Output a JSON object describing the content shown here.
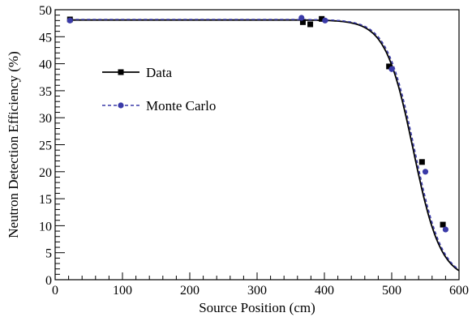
{
  "chart_data": {
    "type": "scatter",
    "title": "",
    "xlabel": "Source Position (cm)",
    "ylabel": "Neutron Detection Efficiency (%)",
    "xlim": [
      0,
      600
    ],
    "ylim": [
      0,
      50
    ],
    "xticks": [
      0,
      100,
      200,
      300,
      400,
      500,
      600
    ],
    "yticks": [
      0,
      5,
      10,
      15,
      20,
      25,
      30,
      35,
      40,
      45,
      50
    ],
    "grid": false,
    "legend": "upper-left",
    "series": [
      {
        "name": "Data",
        "color": "#000000",
        "marker": "square",
        "line_style": "solid",
        "x": [
          22,
          368,
          379,
          396,
          496,
          545,
          576
        ],
        "y": [
          48.2,
          47.7,
          47.3,
          48.3,
          39.5,
          21.8,
          10.2
        ],
        "fit": {
          "plateau": 48.1,
          "midpoint": 532,
          "width": 20.5
        }
      },
      {
        "name": "Monte Carlo",
        "color": "#3a3aa8",
        "marker": "circle",
        "line_style": "dashed",
        "x": [
          22,
          366,
          401,
          500,
          550,
          580
        ],
        "y": [
          48.0,
          48.5,
          48.0,
          39.0,
          20.0,
          9.3
        ],
        "fit": {
          "plateau": 48.2,
          "midpoint": 534,
          "width": 20.5
        }
      }
    ]
  }
}
